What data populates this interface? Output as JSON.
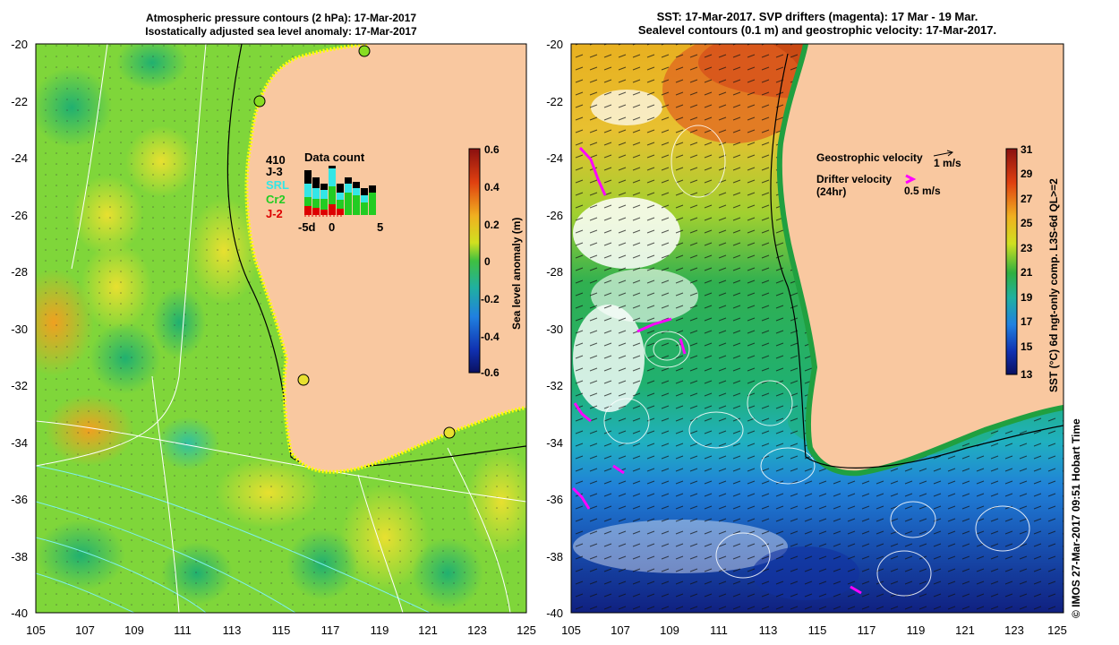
{
  "left_panel": {
    "title_line1": "Atmospheric pressure contours (2 hPa): 17-Mar-2017",
    "title_line2": "Isostatically adjusted sea level anomaly: 17-Mar-2017",
    "y_ticks": [
      "-20",
      "-22",
      "-24",
      "-26",
      "-28",
      "-30",
      "-32",
      "-34",
      "-36",
      "-38",
      "-40"
    ],
    "x_ticks": [
      "105",
      "107",
      "109",
      "111",
      "113",
      "115",
      "117",
      "119",
      "121",
      "123",
      "125"
    ],
    "colorbar_ticks": [
      "0.6",
      "0.4",
      "0.2",
      "0",
      "-0.2",
      "-0.4",
      "-0.6"
    ],
    "colorbar_label": "Sea level anomaly (m)",
    "data_count": {
      "title": "Data count",
      "total": "410",
      "missions": [
        {
          "name": "J-3",
          "color": "#000000"
        },
        {
          "name": "SRL",
          "color": "#33e6e6"
        },
        {
          "name": "Cr2",
          "color": "#22cc22"
        },
        {
          "name": "J-2",
          "color": "#dd0000"
        }
      ],
      "x_ticks": [
        "-5d",
        "0",
        "5"
      ]
    }
  },
  "right_panel": {
    "title_line1": "SST: 17-Mar-2017. SVP drifters (magenta): 17 Mar - 19 Mar.",
    "title_line2": "Sealevel contours (0.1 m) and geostrophic velocity: 17-Mar-2017.",
    "y_ticks": [
      "-20",
      "-22",
      "-24",
      "-26",
      "-28",
      "-30",
      "-32",
      "-34",
      "-36",
      "-38",
      "-40"
    ],
    "x_ticks": [
      "105",
      "107",
      "109",
      "111",
      "113",
      "115",
      "117",
      "119",
      "121",
      "123",
      "125"
    ],
    "colorbar_ticks": [
      "31",
      "29",
      "27",
      "25",
      "23",
      "21",
      "19",
      "17",
      "15",
      "13"
    ],
    "colorbar_label": "SST (°C) 6d ngt-only comp. L3S-6d QL>=2",
    "legend": {
      "geo_label": "Geostrophic velocity",
      "geo_scale": "1 m/s",
      "drifter_label_1": "Drifter velocity",
      "drifter_label_2": "(24hr)",
      "drifter_scale": "0.5 m/s"
    }
  },
  "credit": "© IMOS 27-Mar-2017 09:51 Hobart Time",
  "colors": {
    "land": "#f9c8a0",
    "sla_high": "#e0a030",
    "sla_mid": "#88dd22",
    "sla_low": "#22aa66",
    "sst_warm": "#c03010",
    "sst_mid": "#22aa55",
    "sst_cold": "#102090",
    "drifter": "#ff00ff"
  }
}
